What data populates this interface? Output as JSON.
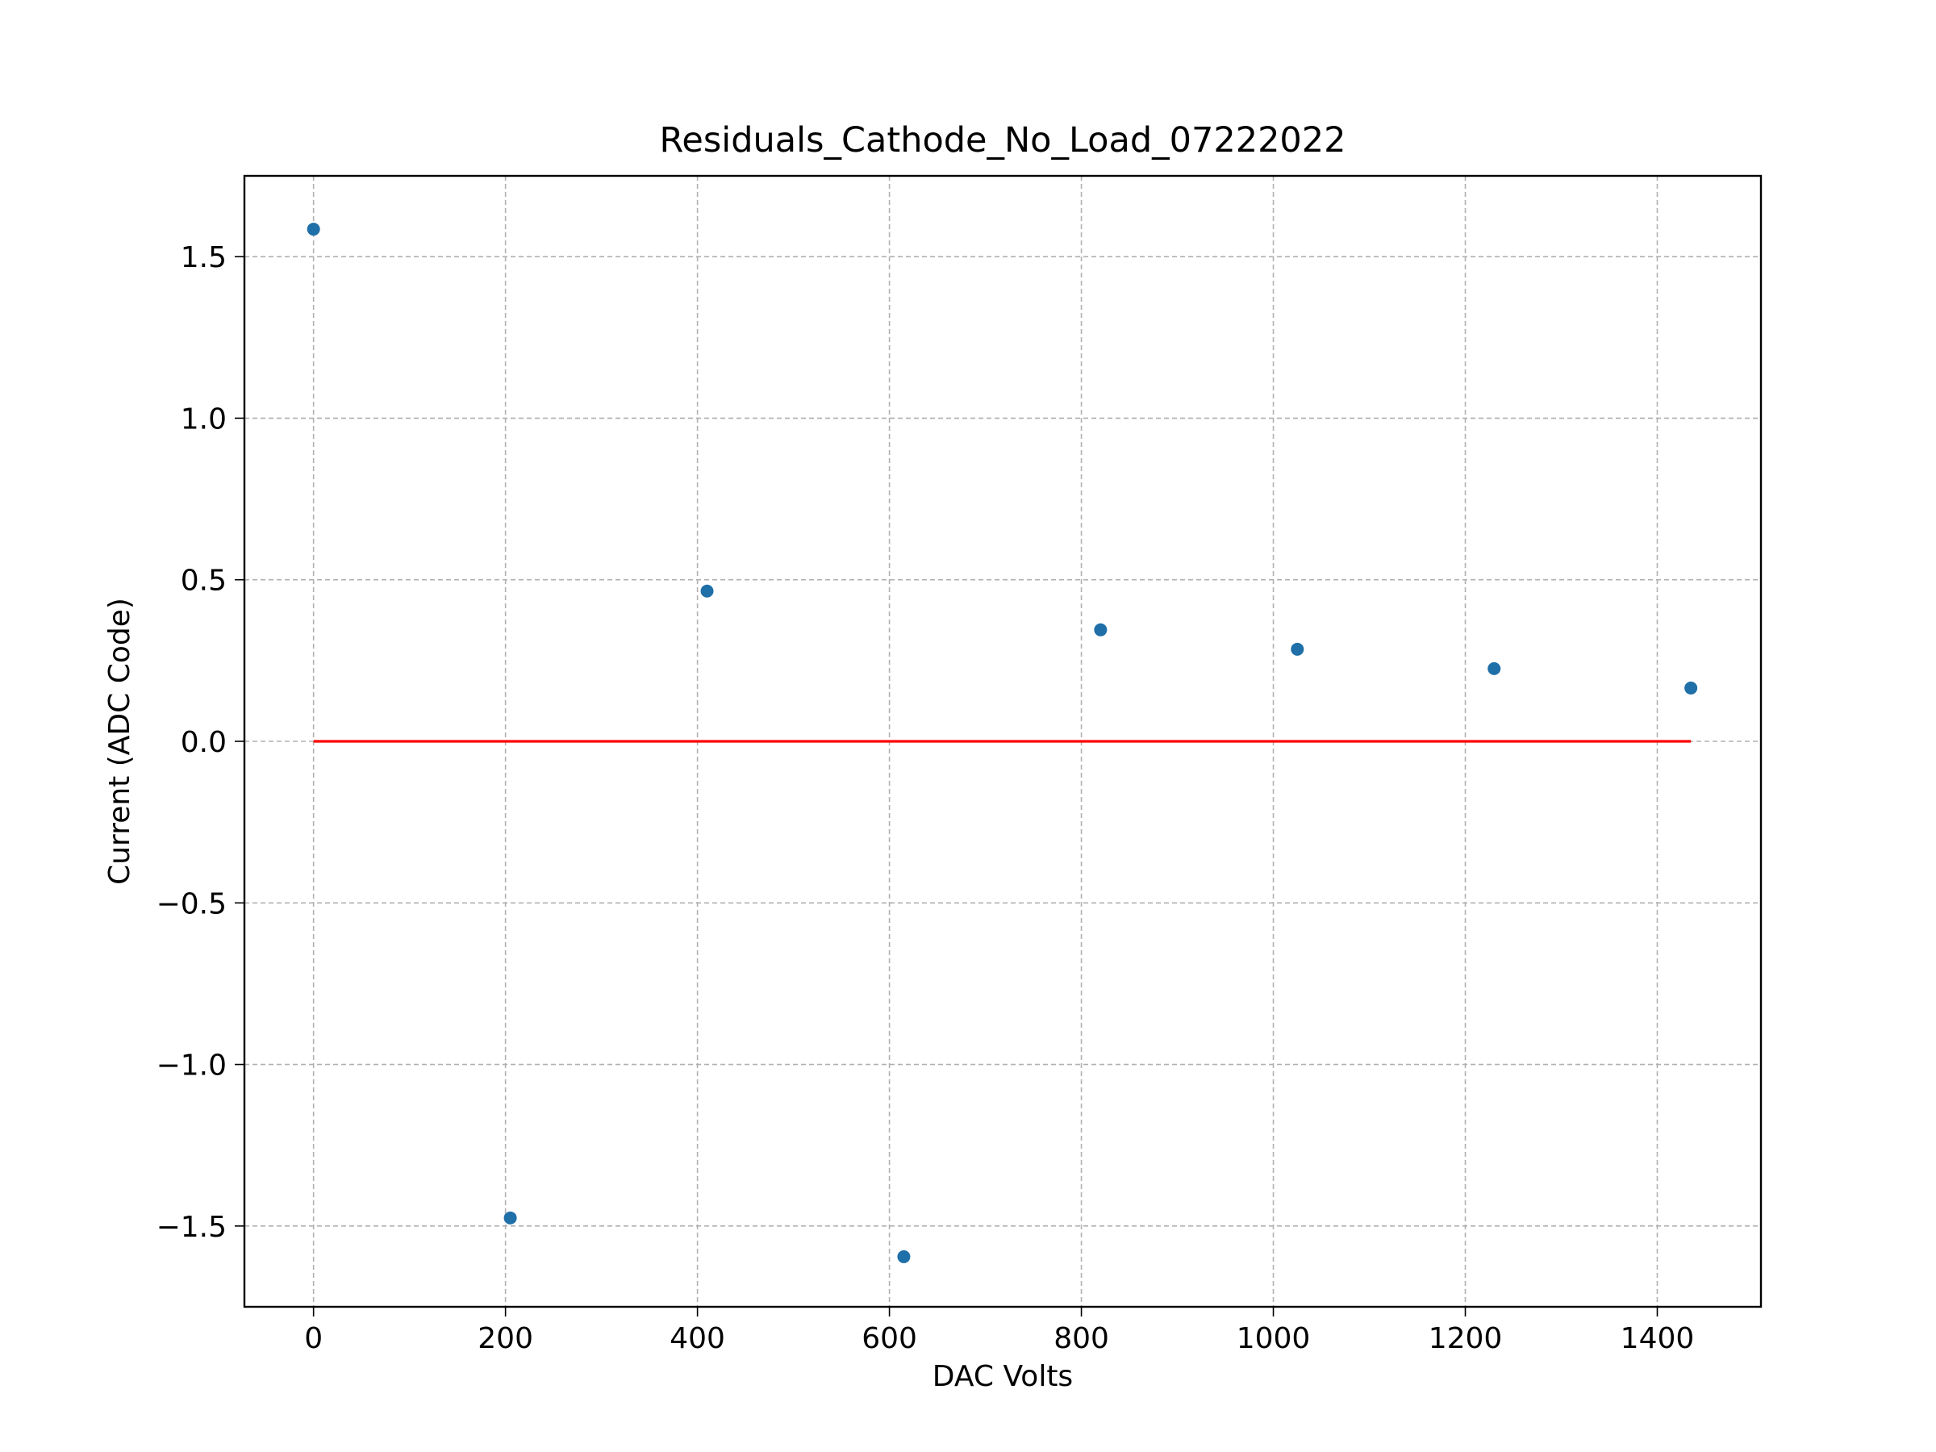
{
  "chart_data": {
    "type": "scatter",
    "title": "Residuals_Cathode_No_Load_07222022",
    "xlabel": "DAC Volts",
    "ylabel": "Current (ADC Code)",
    "xlim": [
      -72,
      1508
    ],
    "ylim": [
      -1.75,
      1.75
    ],
    "xticks": [
      0,
      200,
      400,
      600,
      800,
      1000,
      1200,
      1400
    ],
    "xtick_labels": [
      "0",
      "200",
      "400",
      "600",
      "800",
      "1000",
      "1200",
      "1400"
    ],
    "yticks": [
      1.5,
      1.0,
      0.5,
      0.0,
      -0.5,
      -1.0,
      -1.5
    ],
    "ytick_labels": [
      "1.5",
      "1.0",
      "0.5",
      "0.0",
      "−0.5",
      "−1.0",
      "−1.5"
    ],
    "grid": true,
    "series": [
      {
        "kind": "scatter",
        "color": "#1f6fa8",
        "x": [
          0,
          205,
          410,
          615,
          820,
          1025,
          1230,
          1435
        ],
        "y": [
          1.585,
          -1.475,
          0.465,
          -1.595,
          0.345,
          0.285,
          0.225,
          0.165
        ]
      },
      {
        "kind": "line",
        "color": "#ff0000",
        "x": [
          0,
          1435
        ],
        "y": [
          0.0,
          0.0
        ]
      }
    ]
  }
}
